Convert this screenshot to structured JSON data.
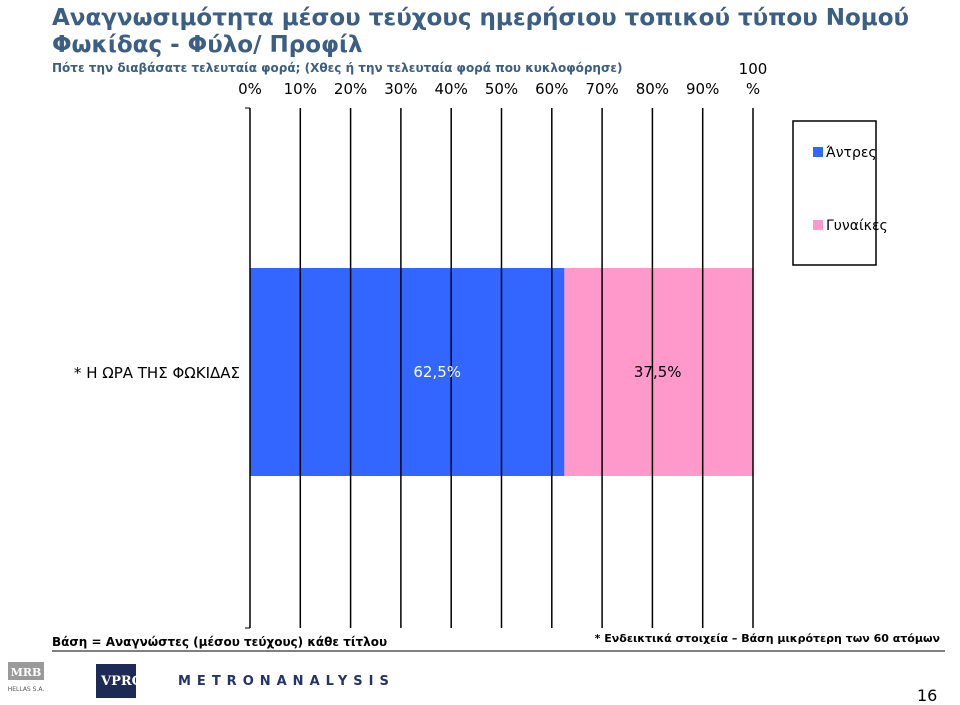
{
  "title_line1": "Αναγνωσιμότητα μέσου τεύχους ημερήσιου τοπικού τύπου Νομού",
  "title_line2": "Φωκίδας - Φύλο/ Προφίλ",
  "subtitle": "Πότε την διαβάσατε τελευταία φορά; (Χθες ή την τελευταία φορά που κυκλοφόρησε)",
  "colors": {
    "men": "#3366ff",
    "women": "#ff99cc",
    "title": "#3b5e84"
  },
  "chart_data": {
    "type": "bar",
    "orientation": "horizontal",
    "stacked": true,
    "percent": true,
    "categories": [
      "* Η ΩΡΑ ΤΗΣ ΦΩΚΙΔΑΣ"
    ],
    "series": [
      {
        "name": "Άντρες",
        "values": [
          62.5
        ],
        "labels": [
          "62,5%"
        ]
      },
      {
        "name": "Γυναίκες",
        "values": [
          37.5
        ],
        "labels": [
          "37,5%"
        ]
      }
    ],
    "xlim": [
      0,
      100
    ],
    "xticks": [
      "0%",
      "10%",
      "20%",
      "30%",
      "40%",
      "50%",
      "60%",
      "70%",
      "80%",
      "90%"
    ],
    "xtick_last_line1": "100",
    "xtick_last_line2": "%",
    "legend_position": "right",
    "grid": true
  },
  "footnote_left": "Βάση = Αναγνώστες (μέσου τεύχους) κάθε τίτλου",
  "footnote_right": "* Ενδεικτικά στοιχεία – Βάση μικρότερη των 60 ατόμων",
  "logos": {
    "mrb_line1": "MRB",
    "mrb_line2": "HELLAS S.A.",
    "vprc": "VPRC",
    "metron": "METRONANALYSIS"
  },
  "page_number": "16"
}
